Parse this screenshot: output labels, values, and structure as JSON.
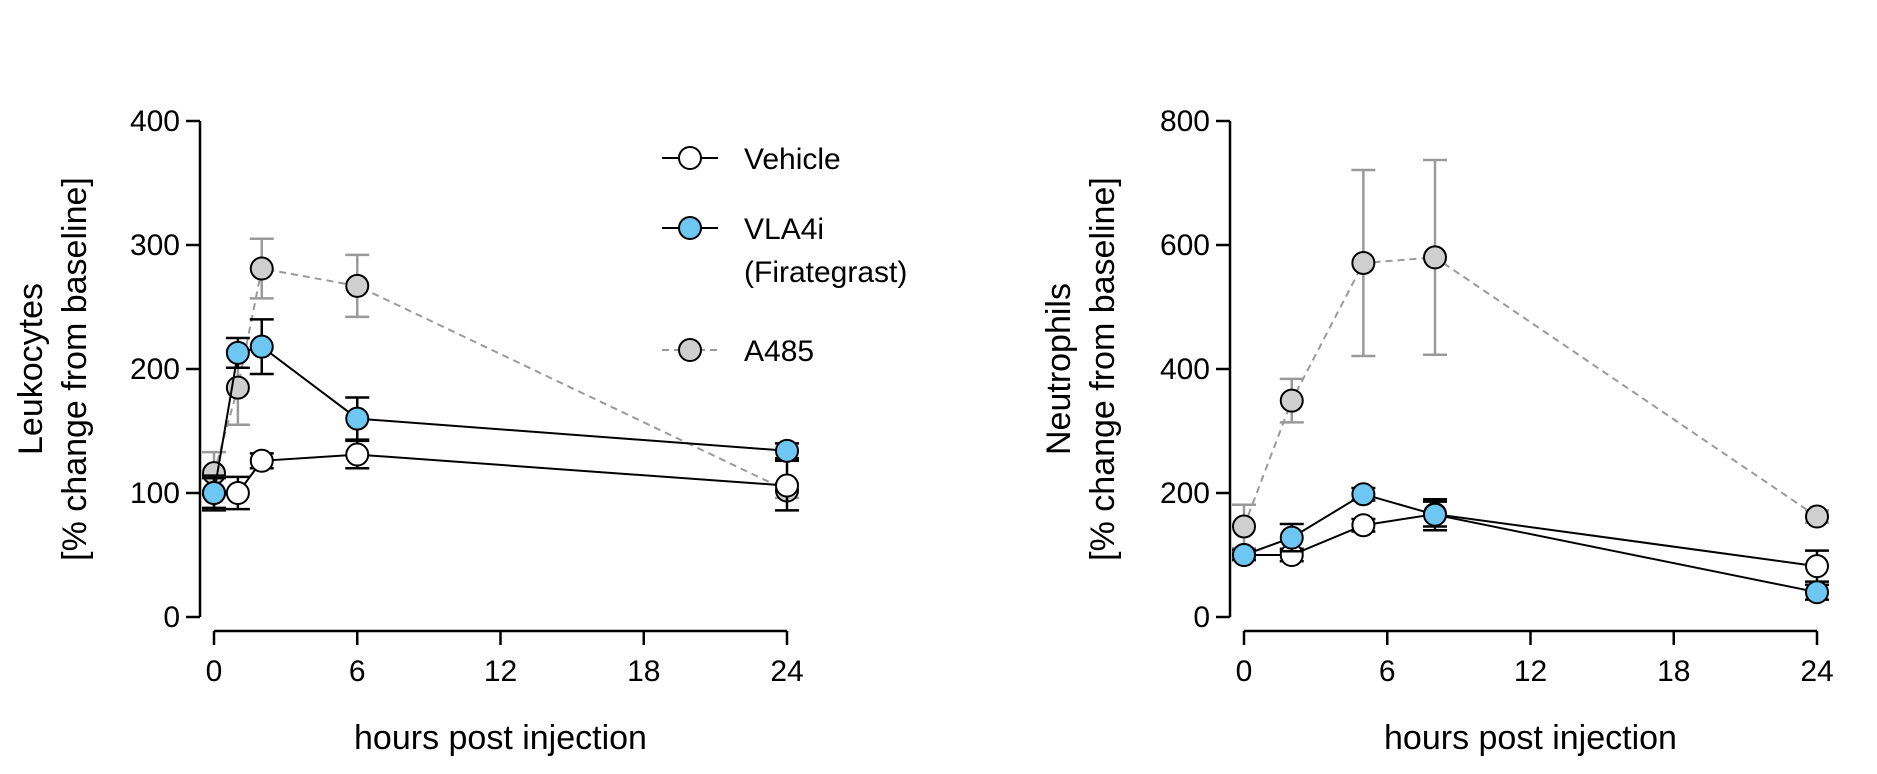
{
  "chart_data": [
    {
      "type": "line",
      "title": "",
      "xlabel": "hours post injection",
      "ylabel_line1": "Leukocytes",
      "ylabel_line2": "[% change from baseline]",
      "xlim": [
        0,
        24
      ],
      "ylim": [
        0,
        400
      ],
      "xticks": [
        "0",
        "6",
        "12",
        "18",
        "24"
      ],
      "yticks": [
        "0",
        "100",
        "200",
        "300",
        "400"
      ],
      "grid": false,
      "series": [
        {
          "name": "Vehicle",
          "x": [
            0,
            1,
            2,
            6,
            24
          ],
          "y": [
            100,
            100,
            126,
            131,
            106
          ],
          "err": [
            14,
            13,
            6,
            11,
            20
          ]
        },
        {
          "name": "VLA4i (Firategrast)",
          "x": [
            0,
            1,
            2,
            6,
            24
          ],
          "y": [
            100,
            213,
            218,
            160,
            134
          ],
          "err": [
            12,
            12,
            22,
            17,
            6
          ]
        },
        {
          "name": "A485",
          "x": [
            0,
            1,
            2,
            6,
            24
          ],
          "y": [
            116,
            185,
            281,
            267,
            102
          ],
          "err": [
            17,
            30,
            24,
            25,
            6
          ]
        }
      ]
    },
    {
      "type": "line",
      "title": "",
      "xlabel": "hours post injection",
      "ylabel_line1": "Neutrophils",
      "ylabel_line2": "[% change from baseline]",
      "xlim": [
        0,
        24
      ],
      "ylim": [
        0,
        800
      ],
      "xticks": [
        "0",
        "6",
        "12",
        "18",
        "24"
      ],
      "yticks": [
        "0",
        "200",
        "400",
        "600",
        "800"
      ],
      "grid": false,
      "series": [
        {
          "name": "Vehicle",
          "x": [
            0,
            2,
            5,
            8,
            24
          ],
          "y": [
            100,
            100,
            148,
            166,
            82
          ],
          "err": [
            8,
            10,
            10,
            20,
            25
          ]
        },
        {
          "name": "VLA4i (Firategrast)",
          "x": [
            0,
            2,
            5,
            8,
            24
          ],
          "y": [
            100,
            128,
            198,
            165,
            40
          ],
          "err": [
            8,
            22,
            10,
            25,
            12
          ]
        },
        {
          "name": "A485",
          "x": [
            0,
            2,
            5,
            8,
            24
          ],
          "y": [
            146,
            349,
            571,
            580,
            162
          ],
          "err": [
            35,
            35,
            150,
            157,
            10
          ]
        }
      ]
    }
  ],
  "legend": {
    "placement": "top-center",
    "entries": [
      {
        "line1": "Vehicle",
        "line2": ""
      },
      {
        "line1": "VLA4i",
        "line2": "(Firategrast)"
      },
      {
        "line1": "A485",
        "line2": ""
      }
    ]
  },
  "styles": {
    "vehicle": {
      "fill": "#ffffff",
      "stroke": "#000000",
      "line": "#000000",
      "dash": ""
    },
    "vla4i": {
      "fill": "#6ec6f2",
      "stroke": "#000000",
      "line": "#000000",
      "dash": ""
    },
    "a485": {
      "fill": "#cfcfcf",
      "stroke": "#000000",
      "line": "#9a9a9a",
      "dash": "7,5"
    }
  }
}
